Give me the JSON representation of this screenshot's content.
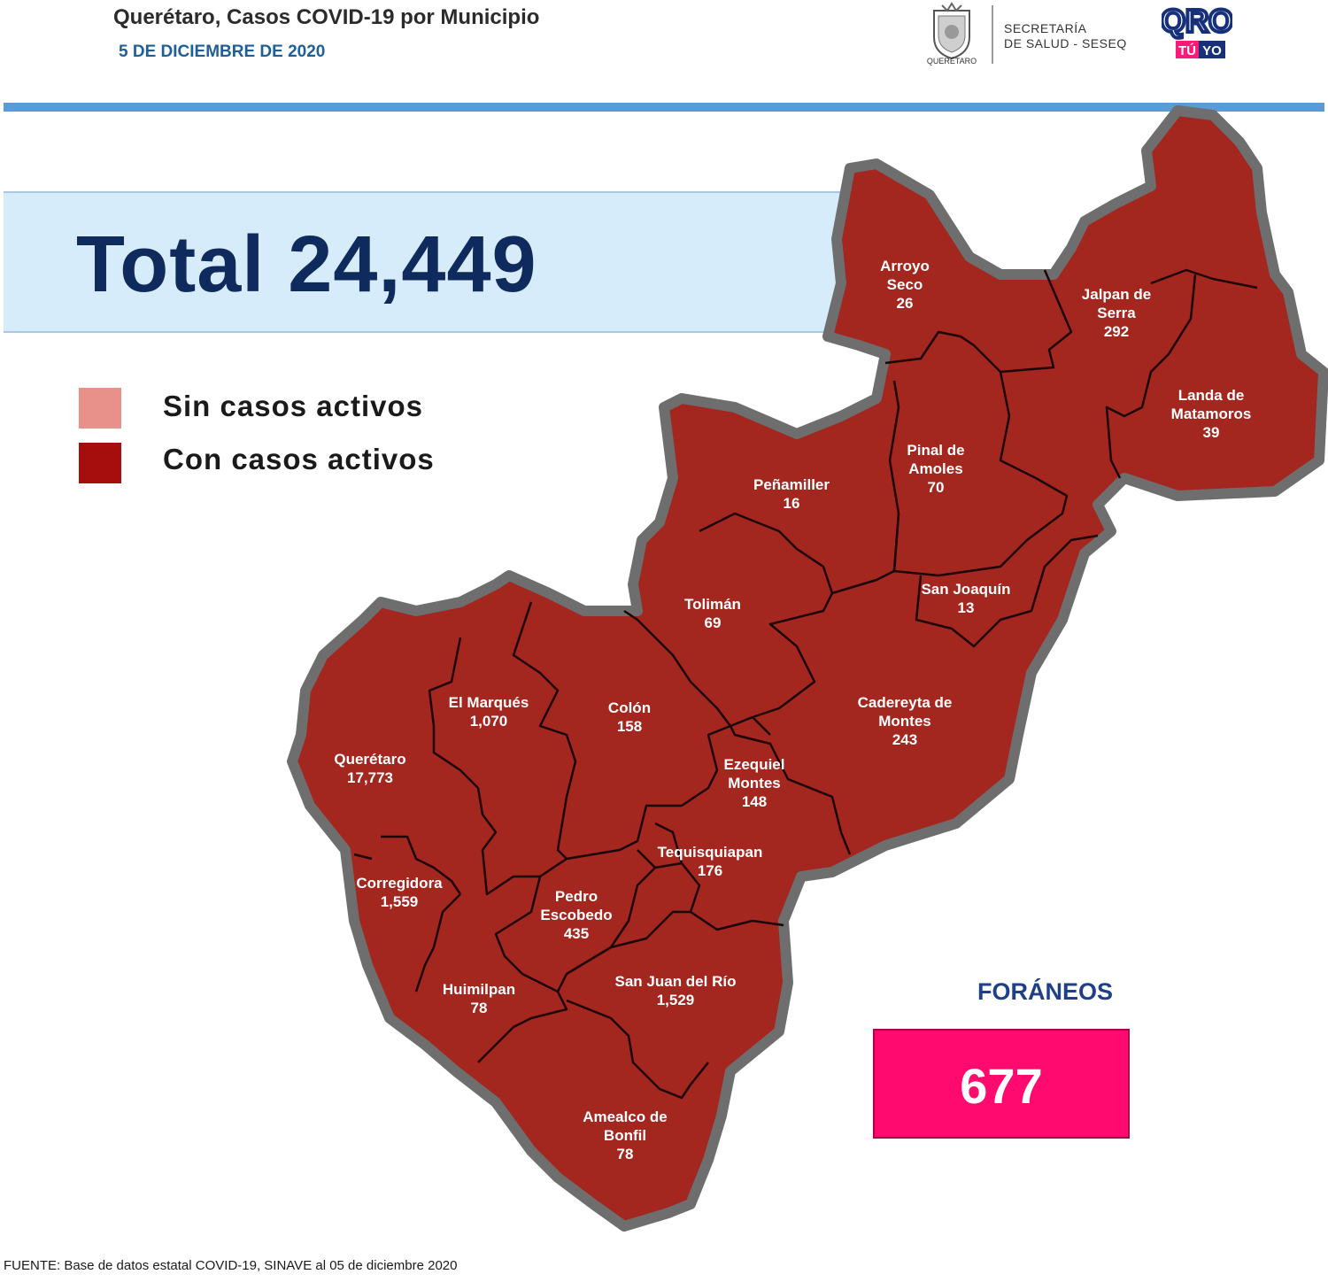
{
  "header": {
    "title": "Querétaro, Casos COVID-19 por Municipio",
    "date": "5 DE DICIEMBRE DE 2020",
    "emblem_caption": "QUERÉTARO",
    "secretaria_line1": "SECRETARÍA",
    "secretaria_line2": "DE SALUD - SESEQ",
    "logo_main": "QRO",
    "logo_tu": "TÚ",
    "logo_yo": "YO"
  },
  "total": {
    "label": "Total 24,449"
  },
  "legend": [
    {
      "label": "Sin casos activos",
      "color": "#e8918b"
    },
    {
      "label": "Con casos activos",
      "color": "#a60d0d"
    }
  ],
  "colors": {
    "region_fill": "#a3261f",
    "border_gray": "#6e6e6e",
    "accent_blue": "#5b9bd5",
    "foraneos_pink": "#ff0a6e"
  },
  "municipios": [
    {
      "name_lines": [
        "Arroyo",
        "Seco"
      ],
      "value": "26"
    },
    {
      "name_lines": [
        "Jalpan de",
        "Serra"
      ],
      "value": "292"
    },
    {
      "name_lines": [
        "Landa de",
        "Matamoros"
      ],
      "value": "39"
    },
    {
      "name_lines": [
        "Pinal de",
        "Amoles"
      ],
      "value": "70"
    },
    {
      "name_lines": [
        "Peñamiller"
      ],
      "value": "16"
    },
    {
      "name_lines": [
        "San Joaquín"
      ],
      "value": "13"
    },
    {
      "name_lines": [
        "Tolimán"
      ],
      "value": "69"
    },
    {
      "name_lines": [
        "Cadereyta de",
        "Montes"
      ],
      "value": "243"
    },
    {
      "name_lines": [
        "El  Marqués"
      ],
      "value": "1,070"
    },
    {
      "name_lines": [
        "Colón"
      ],
      "value": "158"
    },
    {
      "name_lines": [
        "Ezequiel",
        "Montes"
      ],
      "value": "148"
    },
    {
      "name_lines": [
        "Querétaro"
      ],
      "value": "17,773"
    },
    {
      "name_lines": [
        "Tequisquiapan"
      ],
      "value": "176"
    },
    {
      "name_lines": [
        "Corregidora"
      ],
      "value": "1,559"
    },
    {
      "name_lines": [
        "Pedro",
        "Escobedo"
      ],
      "value": "435"
    },
    {
      "name_lines": [
        "Huimilpan"
      ],
      "value": "78"
    },
    {
      "name_lines": [
        "San Juan del Río"
      ],
      "value": "1,529"
    },
    {
      "name_lines": [
        "Amealco de",
        "Bonfil"
      ],
      "value": "78"
    }
  ],
  "foraneos": {
    "label": "FORÁNEOS",
    "value": "677"
  },
  "source": "FUENTE:   Base de datos estatal COVID-19, SINAVE al 05 de diciembre 2020"
}
